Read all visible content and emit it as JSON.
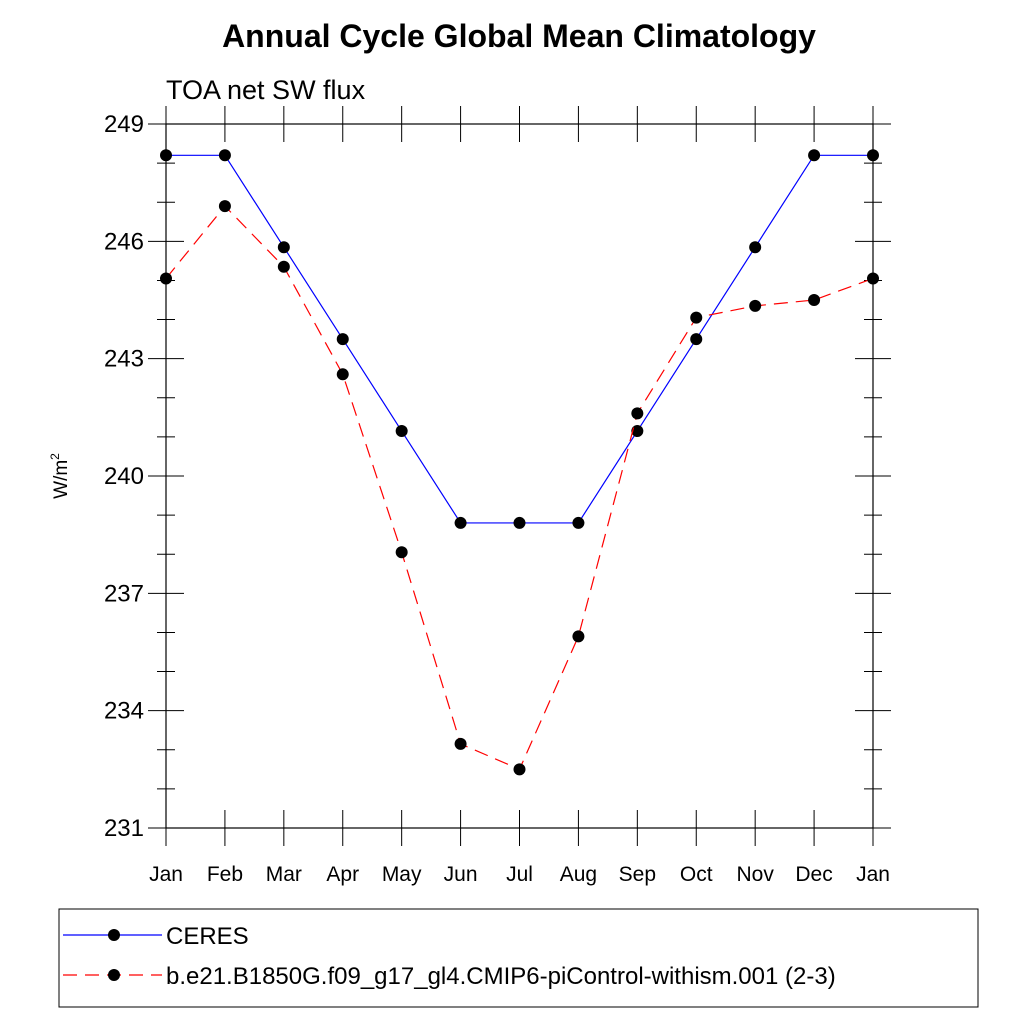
{
  "chart_data": {
    "type": "line",
    "title": "Annual Cycle Global Mean Climatology",
    "subtitle": "TOA net SW flux",
    "ylabel_base": "W/m",
    "ylabel_sup": "2",
    "xlabel": "",
    "categories": [
      "Jan",
      "Feb",
      "Mar",
      "Apr",
      "May",
      "Jun",
      "Jul",
      "Aug",
      "Sep",
      "Oct",
      "Nov",
      "Dec",
      "Jan"
    ],
    "ylim": [
      231,
      249
    ],
    "yticks": [
      231,
      234,
      237,
      240,
      243,
      246,
      249
    ],
    "ytick_labels": [
      "231",
      "234",
      "237",
      "240",
      "243",
      "246",
      "249"
    ],
    "grid": false,
    "legend_position": "bottom",
    "series": [
      {
        "name": "CERES",
        "color": "#0000ff",
        "dash": "solid",
        "values": [
          248.2,
          248.2,
          245.85,
          243.5,
          241.15,
          238.8,
          238.8,
          238.8,
          241.15,
          243.5,
          245.85,
          248.2,
          248.2
        ]
      },
      {
        "name": "b.e21.B1850G.f09_g17_gl4.CMIP6-piControl-withism.001 (2-3)",
        "color": "#ff0000",
        "dash": "dashed",
        "values": [
          245.05,
          246.9,
          245.35,
          242.6,
          238.05,
          233.15,
          232.5,
          235.9,
          241.6,
          244.05,
          244.35,
          244.5,
          245.05
        ]
      }
    ]
  }
}
